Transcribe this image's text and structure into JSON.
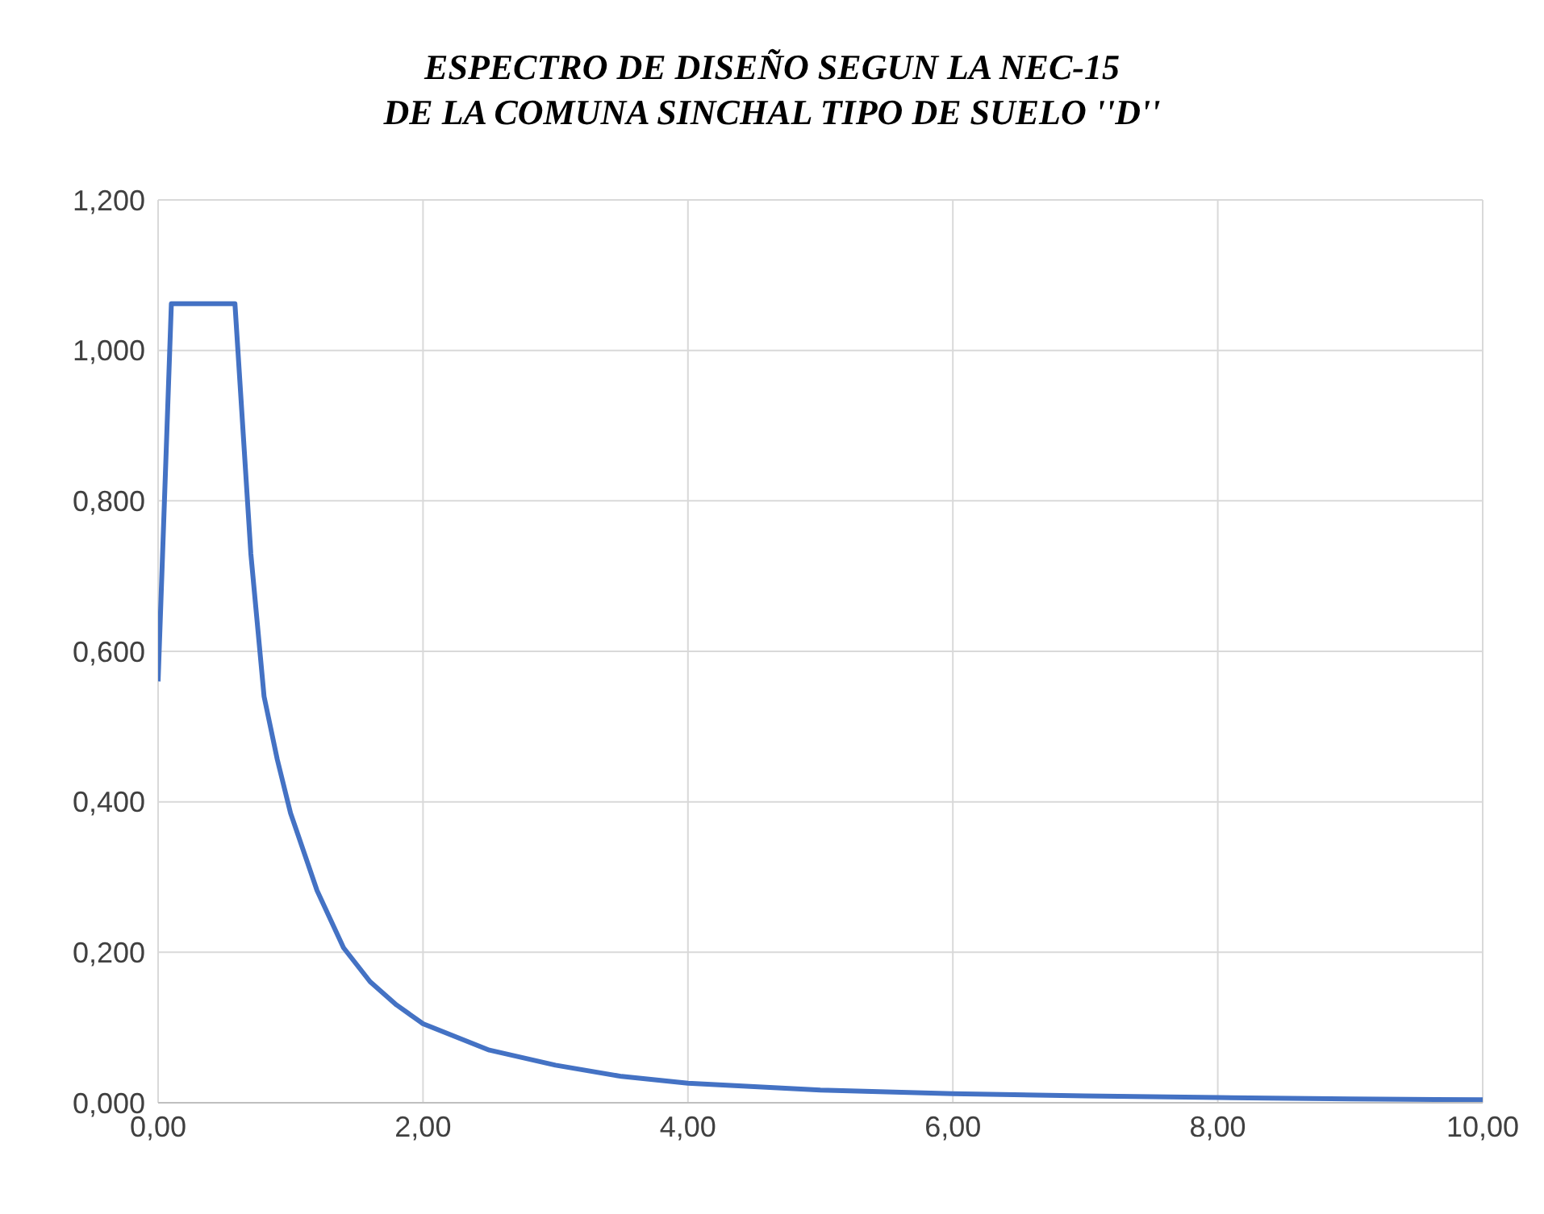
{
  "chart_data": {
    "type": "line",
    "title": "ESPECTRO DE DISEÑO SEGUN LA NEC-15\nDE LA COMUNA SINCHAL TIPO DE SUELO ''D''",
    "x": [
      0,
      0.1,
      0.58,
      0.7,
      0.8,
      0.9,
      1.0,
      1.2,
      1.4,
      1.6,
      1.8,
      2.0,
      2.5,
      3.0,
      3.5,
      4.0,
      5.0,
      6.0,
      7.0,
      8.0,
      9.0,
      10.0
    ],
    "series": [
      {
        "color": "#4472c4",
        "values": [
          0.56,
          1.062,
          1.062,
          0.73,
          0.54,
          0.456,
          0.385,
          0.282,
          0.206,
          0.161,
          0.13,
          0.105,
          0.07,
          0.05,
          0.035,
          0.026,
          0.017,
          0.012,
          0.009,
          0.007,
          0.005,
          0.004
        ]
      }
    ],
    "xlim": [
      0,
      10
    ],
    "xticks": [
      {
        "value": 0,
        "label": "0,00"
      },
      {
        "value": 2,
        "label": "2,00"
      },
      {
        "value": 4,
        "label": "4,00"
      },
      {
        "value": 6,
        "label": "6,00"
      },
      {
        "value": 8,
        "label": "8,00"
      },
      {
        "value": 10,
        "label": "10,00"
      }
    ],
    "ylim": [
      0,
      1.2
    ],
    "yticks": [
      {
        "value": 0,
        "label": "0,000"
      },
      {
        "value": 0.2,
        "label": "0,200"
      },
      {
        "value": 0.4,
        "label": "0,400"
      },
      {
        "value": 0.6,
        "label": "0,600"
      },
      {
        "value": 0.8,
        "label": "0,800"
      },
      {
        "value": 1.0,
        "label": "1,000"
      },
      {
        "value": 1.2,
        "label": "1,200"
      }
    ],
    "grid": true,
    "marker": "none",
    "line_style": "solid"
  }
}
